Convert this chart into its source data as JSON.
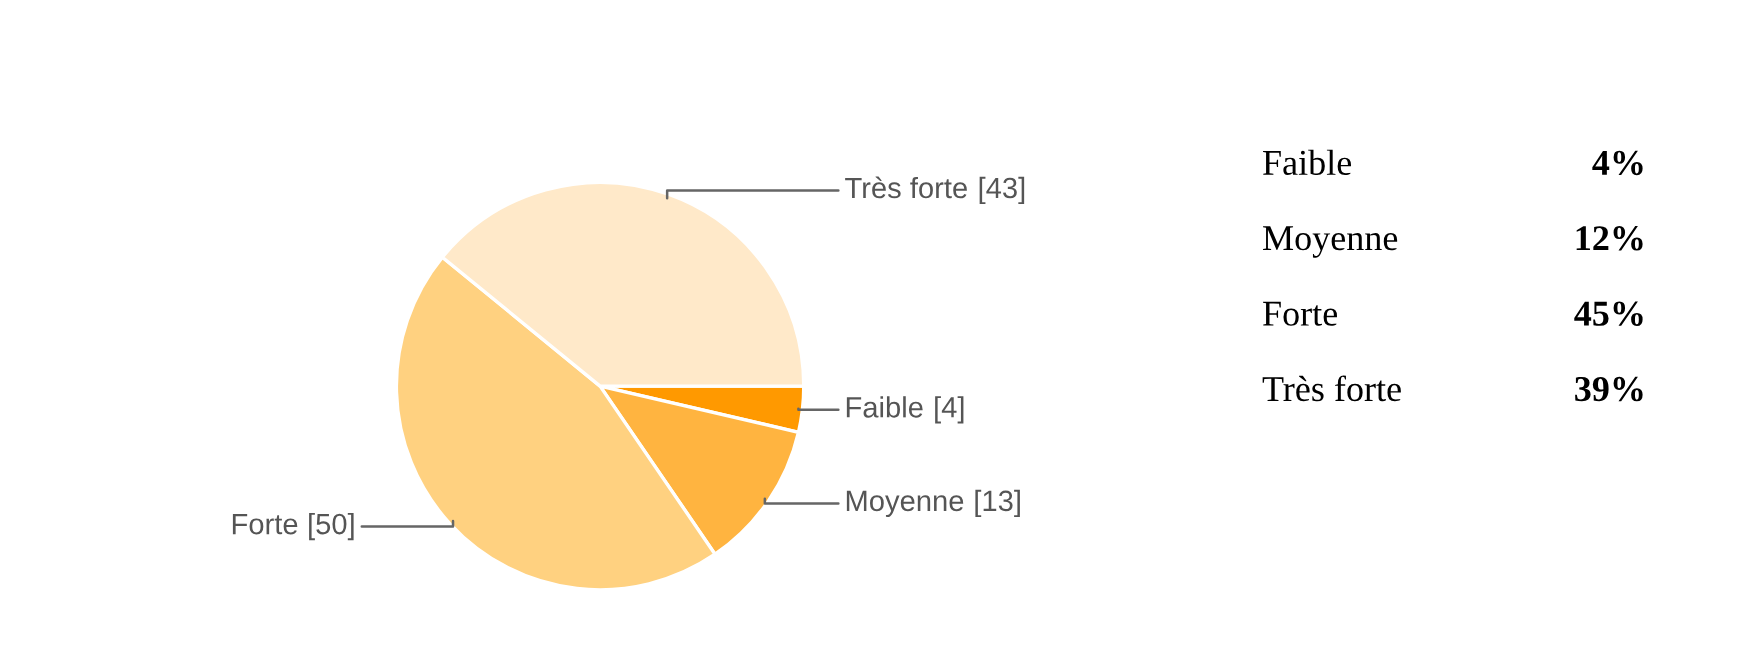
{
  "chart_data": [
    {
      "type": "pie",
      "categories": [
        "Faible",
        "Moyenne",
        "Forte",
        "Très forte"
      ],
      "values": [
        4,
        13,
        50,
        43
      ],
      "value_labels": [
        "[4]",
        "[13]",
        "[50]",
        "[43]"
      ],
      "colors": [
        "#ff9900",
        "#ffb440",
        "#ffd180",
        "#ffe9c9"
      ]
    },
    {
      "type": "other",
      "categories": [
        "Faible",
        "Moyenne",
        "Forte",
        "Très forte"
      ],
      "value_labels": [
        "4%",
        "12%",
        "45%",
        "39%"
      ]
    }
  ]
}
